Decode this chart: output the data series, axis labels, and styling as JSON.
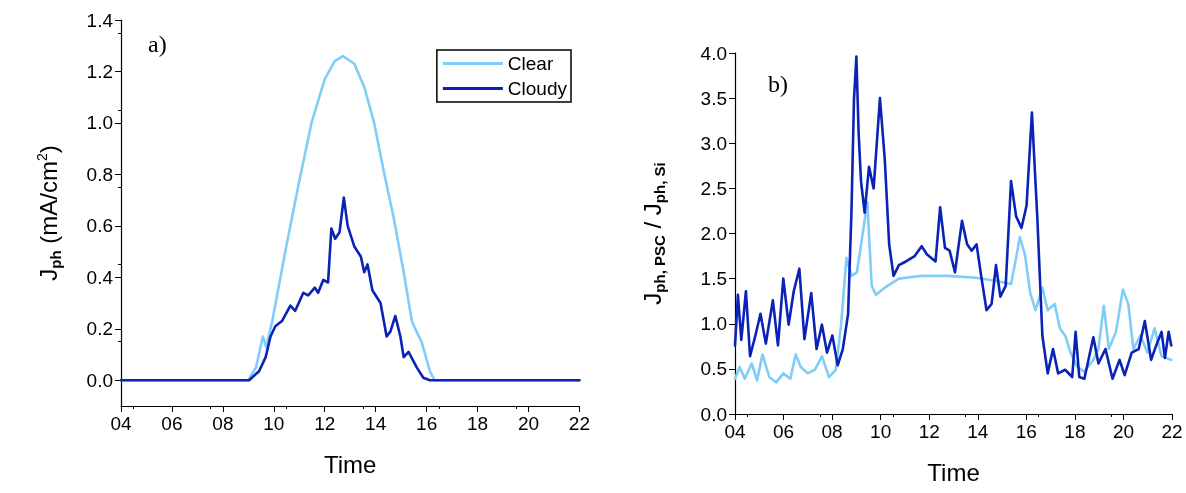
{
  "chart_data": [
    {
      "type": "line",
      "xlabel": "Time",
      "ylabel": "J$_{ph}$ (mA/cm$^{2}$)",
      "annotations": [
        "a)"
      ],
      "xlim": [
        4,
        22
      ],
      "xticks": [
        {
          "value": 4,
          "label": "04"
        },
        {
          "value": 6,
          "label": "06"
        },
        {
          "value": 8,
          "label": "08"
        },
        {
          "value": 10,
          "label": "10"
        },
        {
          "value": 12,
          "label": "12"
        },
        {
          "value": 14,
          "label": "14"
        },
        {
          "value": 16,
          "label": "16"
        },
        {
          "value": 18,
          "label": "18"
        },
        {
          "value": 20,
          "label": "20"
        },
        {
          "value": 22,
          "label": "22"
        }
      ],
      "ylim": [
        -0.1,
        1.4
      ],
      "yticks": [
        {
          "value": 0,
          "label": "0.0"
        },
        {
          "value": 0.2,
          "label": "0.2"
        },
        {
          "value": 0.4,
          "label": "0.4"
        },
        {
          "value": 0.6,
          "label": "0.6"
        },
        {
          "value": 0.8,
          "label": "0.8"
        },
        {
          "value": 1.0,
          "label": "1.0"
        },
        {
          "value": 1.2,
          "label": "1.2"
        },
        {
          "value": 1.4,
          "label": "1.4"
        }
      ],
      "legend": "top right",
      "marker": "none",
      "grid": false,
      "series": [
        {
          "name": "Clear",
          "color": "#80cdf7",
          "x": [
            4,
            9.0,
            9.3,
            9.57,
            9.7,
            9.94,
            10.45,
            10.97,
            11.48,
            12.0,
            12.39,
            12.71,
            13.16,
            13.55,
            13.94,
            14.32,
            14.71,
            15.1,
            15.42,
            15.6,
            15.8,
            16.13,
            16.32,
            22
          ],
          "values": [
            0,
            0,
            0.05,
            0.17,
            0.13,
            0.23,
            0.5,
            0.76,
            1.0,
            1.17,
            1.24,
            1.26,
            1.23,
            1.14,
            1.0,
            0.81,
            0.63,
            0.42,
            0.23,
            0.19,
            0.15,
            0.035,
            0,
            0
          ]
        },
        {
          "name": "Cloudy",
          "color": "#0a22b5",
          "x": [
            4,
            9.03,
            9.42,
            9.68,
            9.87,
            10.06,
            10.32,
            10.65,
            10.84,
            11.16,
            11.35,
            11.61,
            11.74,
            11.94,
            12.13,
            12.26,
            12.41,
            12.58,
            12.75,
            12.9,
            13.16,
            13.42,
            13.55,
            13.68,
            13.87,
            14.19,
            14.43,
            14.58,
            14.77,
            14.97,
            15.1,
            15.29,
            15.61,
            15.87,
            16.13,
            22
          ],
          "values": [
            0,
            0,
            0.035,
            0.09,
            0.17,
            0.21,
            0.23,
            0.29,
            0.27,
            0.34,
            0.33,
            0.36,
            0.34,
            0.39,
            0.38,
            0.59,
            0.55,
            0.575,
            0.71,
            0.6,
            0.52,
            0.48,
            0.42,
            0.45,
            0.35,
            0.3,
            0.17,
            0.19,
            0.25,
            0.17,
            0.09,
            0.11,
            0.05,
            0.01,
            0,
            0
          ]
        }
      ]
    },
    {
      "type": "line",
      "xlabel": "Time",
      "ylabel": "J$_{ph, PSC}$ / J$_{ph, Si}$",
      "annotations": [
        "b)"
      ],
      "xlim": [
        4,
        22
      ],
      "xticks": [
        {
          "value": 4,
          "label": "04"
        },
        {
          "value": 6,
          "label": "06"
        },
        {
          "value": 8,
          "label": "08"
        },
        {
          "value": 10,
          "label": "10"
        },
        {
          "value": 12,
          "label": "12"
        },
        {
          "value": 14,
          "label": "14"
        },
        {
          "value": 16,
          "label": "16"
        },
        {
          "value": 18,
          "label": "18"
        },
        {
          "value": 20,
          "label": "20"
        },
        {
          "value": 22,
          "label": "22"
        }
      ],
      "ylim": [
        0,
        4
      ],
      "yticks": [
        {
          "value": 0,
          "label": "0.0"
        },
        {
          "value": 0.5,
          "label": "0.5"
        },
        {
          "value": 1.0,
          "label": "1.0"
        },
        {
          "value": 1.5,
          "label": "1.5"
        },
        {
          "value": 2.0,
          "label": "2.0"
        },
        {
          "value": 2.5,
          "label": "2.5"
        },
        {
          "value": 3.0,
          "label": "3.0"
        },
        {
          "value": 3.5,
          "label": "3.5"
        },
        {
          "value": 4.0,
          "label": "4.0"
        }
      ],
      "marker": "none",
      "grid": false,
      "series": [
        {
          "color": "#80cdf7",
          "x": [
            4.0,
            4.19,
            4.4,
            4.69,
            4.91,
            5.13,
            5.41,
            5.7,
            5.99,
            6.28,
            6.5,
            6.71,
            7.0,
            7.29,
            7.58,
            7.87,
            8.15,
            8.37,
            8.59,
            8.8,
            9.02,
            9.24,
            9.45,
            9.63,
            9.81,
            10.17,
            10.75,
            11.62,
            12.77,
            13.92,
            14.64,
            15.37,
            15.58,
            15.73,
            15.94,
            16.16,
            16.38,
            16.66,
            16.88,
            17.17,
            17.38,
            17.6,
            17.82,
            18.1,
            18.39,
            18.76,
            18.97,
            19.19,
            19.4,
            19.69,
            19.98,
            20.2,
            20.41,
            20.7,
            20.99,
            21.28,
            21.57,
            21.97
          ],
          "values": [
            0.39,
            0.52,
            0.39,
            0.56,
            0.37,
            0.66,
            0.41,
            0.35,
            0.45,
            0.39,
            0.66,
            0.52,
            0.45,
            0.49,
            0.64,
            0.41,
            0.49,
            0.99,
            1.73,
            1.53,
            1.57,
            1.96,
            2.35,
            1.42,
            1.32,
            1.4,
            1.5,
            1.53,
            1.53,
            1.51,
            1.48,
            1.44,
            1.73,
            1.96,
            1.77,
            1.34,
            1.15,
            1.4,
            1.15,
            1.22,
            0.95,
            0.87,
            0.68,
            0.52,
            0.47,
            0.6,
            0.72,
            1.2,
            0.72,
            0.91,
            1.38,
            1.22,
            0.72,
            0.87,
            0.68,
            0.95,
            0.64,
            0.6
          ]
        },
        {
          "color": "#0a22b5",
          "x": [
            4.0,
            4.12,
            4.26,
            4.45,
            4.62,
            4.84,
            5.05,
            5.27,
            5.56,
            5.77,
            5.99,
            6.21,
            6.42,
            6.65,
            6.86,
            7.14,
            7.36,
            7.58,
            7.79,
            8.01,
            8.23,
            8.44,
            8.66,
            8.8,
            8.9,
            9.0,
            9.09,
            9.19,
            9.34,
            9.52,
            9.71,
            9.97,
            10.17,
            10.35,
            10.53,
            10.75,
            11.04,
            11.4,
            11.69,
            11.9,
            12.26,
            12.45,
            12.65,
            12.84,
            13.06,
            13.35,
            13.56,
            13.75,
            13.95,
            14.14,
            14.36,
            14.57,
            14.75,
            14.93,
            15.15,
            15.37,
            15.58,
            15.8,
            16.01,
            16.23,
            16.45,
            16.66,
            16.88,
            17.1,
            17.31,
            17.6,
            17.89,
            18.03,
            18.18,
            18.39,
            18.76,
            18.97,
            19.26,
            19.55,
            19.84,
            20.05,
            20.34,
            20.63,
            20.88,
            21.14,
            21.35,
            21.57,
            21.71,
            21.86,
            21.97
          ],
          "values": [
            0.76,
            1.32,
            0.82,
            1.36,
            0.64,
            0.87,
            1.11,
            0.78,
            1.26,
            0.76,
            1.5,
            0.99,
            1.36,
            1.61,
            0.83,
            1.34,
            0.72,
            0.99,
            0.68,
            0.87,
            0.54,
            0.72,
            1.11,
            2.27,
            3.48,
            3.96,
            3.13,
            2.58,
            2.23,
            2.74,
            2.5,
            3.5,
            2.82,
            1.88,
            1.53,
            1.65,
            1.69,
            1.75,
            1.86,
            1.77,
            1.69,
            2.29,
            1.84,
            1.81,
            1.57,
            2.14,
            1.88,
            1.81,
            1.88,
            1.53,
            1.15,
            1.22,
            1.65,
            1.3,
            1.42,
            2.58,
            2.19,
            2.06,
            2.31,
            3.34,
            2.19,
            0.87,
            0.45,
            0.72,
            0.45,
            0.49,
            0.41,
            0.91,
            0.41,
            0.39,
            0.85,
            0.56,
            0.72,
            0.39,
            0.6,
            0.43,
            0.68,
            0.72,
            1.03,
            0.6,
            0.76,
            0.91,
            0.62,
            0.91,
            0.76
          ]
        }
      ]
    }
  ]
}
